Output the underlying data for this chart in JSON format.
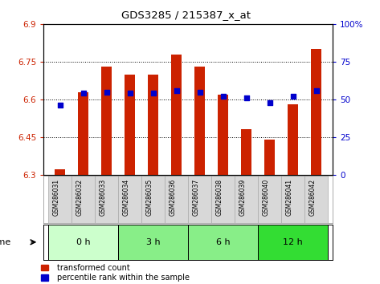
{
  "title": "GDS3285 / 215387_x_at",
  "samples": [
    "GSM286031",
    "GSM286032",
    "GSM286033",
    "GSM286034",
    "GSM286035",
    "GSM286036",
    "GSM286037",
    "GSM286038",
    "GSM286039",
    "GSM286040",
    "GSM286041",
    "GSM286042"
  ],
  "transformed_count": [
    6.32,
    6.63,
    6.73,
    6.7,
    6.7,
    6.78,
    6.73,
    6.62,
    6.48,
    6.44,
    6.58,
    6.8
  ],
  "percentile_rank": [
    46,
    54,
    55,
    54,
    54,
    56,
    55,
    52,
    51,
    48,
    52,
    56
  ],
  "ymin": 6.3,
  "ymax": 6.9,
  "yticks": [
    6.3,
    6.45,
    6.6,
    6.75,
    6.9
  ],
  "ytick_labels": [
    "6.3",
    "6.45",
    "6.6",
    "6.75",
    "6.9"
  ],
  "y2min": 0,
  "y2max": 100,
  "y2ticks": [
    0,
    25,
    50,
    75,
    100
  ],
  "y2tick_labels": [
    "0",
    "25",
    "50",
    "75",
    "100%"
  ],
  "bar_color": "#cc2200",
  "dot_color": "#0000cc",
  "groups": [
    {
      "label": "0 h",
      "start": 0,
      "end": 3,
      "color": "#ccffcc"
    },
    {
      "label": "3 h",
      "start": 3,
      "end": 6,
      "color": "#88ee88"
    },
    {
      "label": "6 h",
      "start": 6,
      "end": 9,
      "color": "#88ee88"
    },
    {
      "label": "12 h",
      "start": 9,
      "end": 12,
      "color": "#33dd33"
    }
  ],
  "time_label": "time",
  "legend_bar_label": "transformed count",
  "legend_dot_label": "percentile rank within the sample",
  "bar_width": 0.45,
  "base_value": 6.3,
  "sample_bg": "#d8d8d8"
}
